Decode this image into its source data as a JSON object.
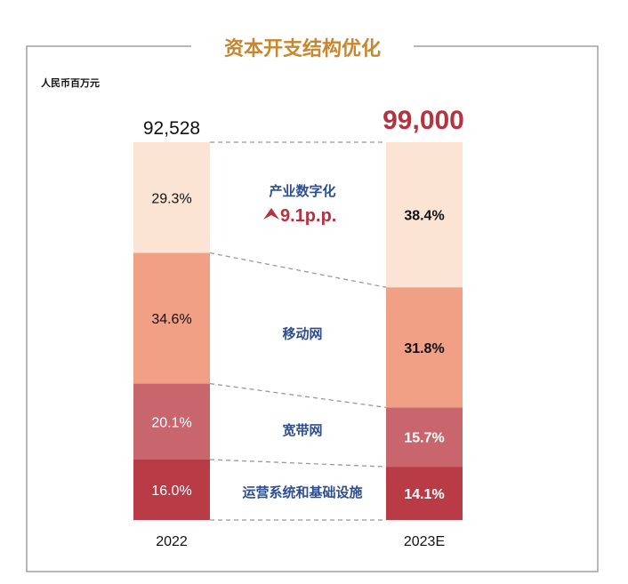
{
  "chart_data": {
    "type": "bar",
    "stacked": true,
    "normalized": true,
    "title": "资本开支结构优化",
    "unit": "人民币百万元",
    "categories": [
      "2022",
      "2023E"
    ],
    "totals": [
      "92,528",
      "99,000"
    ],
    "series": [
      {
        "name": "运营系统和基础设施",
        "values": [
          16.0,
          14.1
        ],
        "labels": [
          "16.0%",
          "14.1%"
        ],
        "color": "#b83b46"
      },
      {
        "name": "宽带网",
        "values": [
          20.1,
          15.7
        ],
        "labels": [
          "20.1%",
          "15.7%"
        ],
        "color": "#c9666d"
      },
      {
        "name": "移动网",
        "values": [
          34.6,
          31.8
        ],
        "labels": [
          "34.6%",
          "31.8%"
        ],
        "color": "#f1a086"
      },
      {
        "name": "产业数字化",
        "values": [
          29.3,
          38.4
        ],
        "labels": [
          "29.3%",
          "38.4%"
        ],
        "color": "#fce4d4"
      }
    ],
    "annotation": "9.1p.p.",
    "annotation_icon": "arrow-up-icon",
    "colors": {
      "title": "#c8862e",
      "series_label": "#2e4f8f",
      "highlight": "#b5333f",
      "frame": "#999999"
    }
  }
}
